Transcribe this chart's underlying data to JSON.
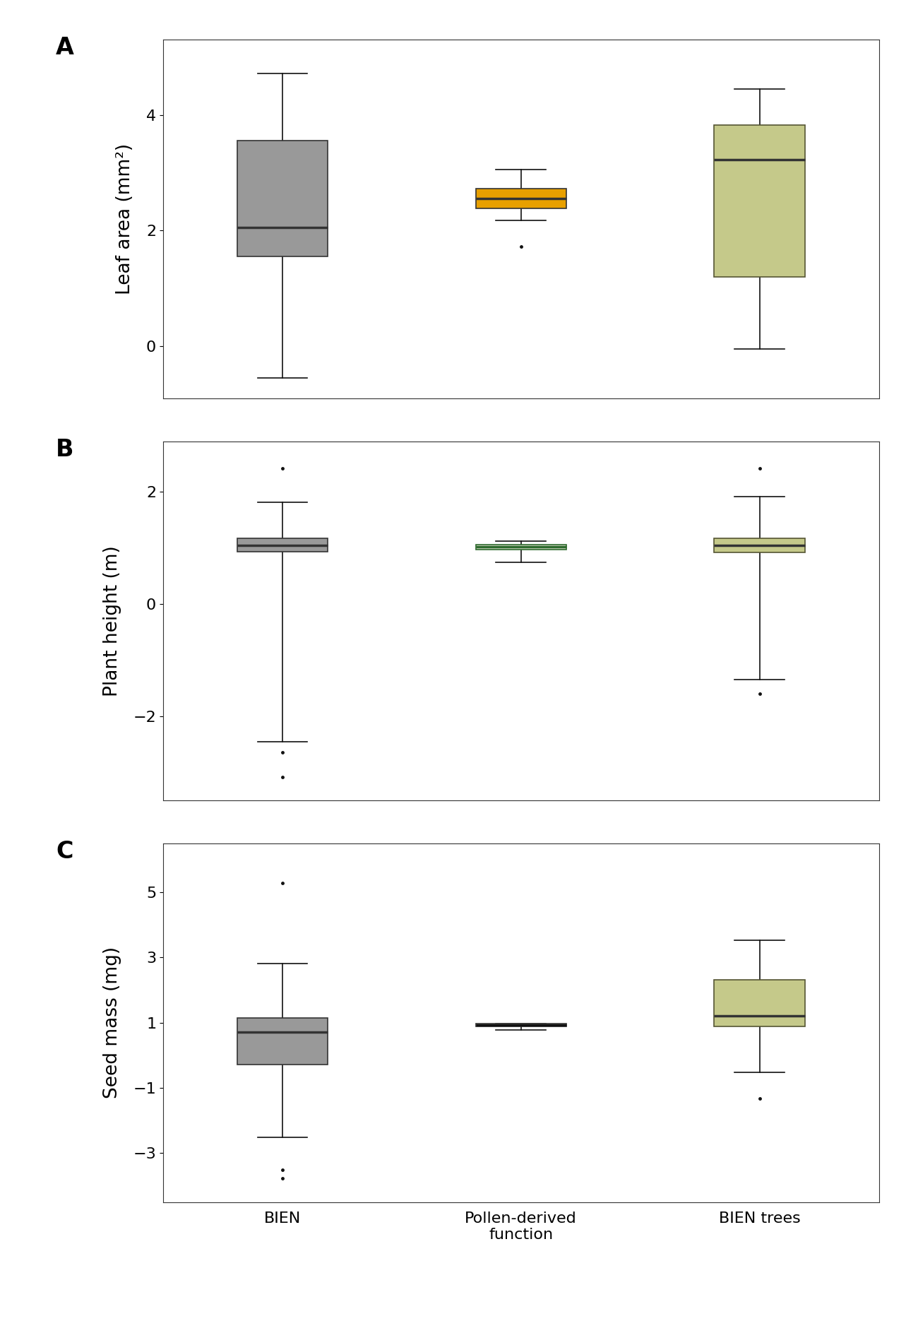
{
  "panels": [
    {
      "label": "A",
      "ylabel": "Leaf area (mm²)",
      "ylim": [
        -0.9,
        5.3
      ],
      "yticks": [
        0,
        2,
        4
      ],
      "boxes": [
        {
          "name": "BIEN",
          "color": "#999999",
          "edge_color": "#333333",
          "median_color": "#333333",
          "q1": 1.55,
          "median": 2.05,
          "q3": 3.55,
          "whisker_low": -0.55,
          "whisker_high": 4.72,
          "outliers": [],
          "x": 1
        },
        {
          "name": "Pollen-derived\nfunction",
          "color": "#E8A000",
          "edge_color": "#333333",
          "median_color": "#333333",
          "q1": 2.38,
          "median": 2.55,
          "q3": 2.72,
          "whisker_low": 2.18,
          "whisker_high": 3.05,
          "outliers": [
            1.73
          ],
          "x": 2
        },
        {
          "name": "BIEN trees",
          "color": "#C5C98A",
          "edge_color": "#555533",
          "median_color": "#333333",
          "q1": 1.2,
          "median": 3.22,
          "q3": 3.82,
          "whisker_low": -0.05,
          "whisker_high": 4.45,
          "outliers": [],
          "x": 3
        }
      ]
    },
    {
      "label": "B",
      "ylabel": "Plant height (m)",
      "ylim": [
        -3.5,
        2.9
      ],
      "yticks": [
        -2,
        0,
        2
      ],
      "boxes": [
        {
          "name": "BIEN",
          "color": "#999999",
          "edge_color": "#333333",
          "median_color": "#333333",
          "q1": 0.93,
          "median": 1.05,
          "q3": 1.17,
          "whisker_low": -2.45,
          "whisker_high": 1.82,
          "outliers": [
            2.42,
            -2.65,
            -3.08
          ],
          "x": 1
        },
        {
          "name": "Pollen-derived\nfunction",
          "color": "#DDDDCC",
          "edge_color": "#2D6A2D",
          "median_color": "#2D6A2D",
          "q1": 0.97,
          "median": 1.02,
          "q3": 1.06,
          "whisker_low": 0.75,
          "whisker_high": 1.12,
          "outliers": [],
          "x": 2
        },
        {
          "name": "BIEN trees",
          "color": "#C5C98A",
          "edge_color": "#555533",
          "median_color": "#333333",
          "q1": 0.92,
          "median": 1.05,
          "q3": 1.17,
          "whisker_low": -1.35,
          "whisker_high": 1.92,
          "outliers": [
            2.42,
            -1.6
          ],
          "x": 3
        }
      ]
    },
    {
      "label": "C",
      "ylabel": "Seed mass (mg)",
      "ylim": [
        -4.5,
        6.5
      ],
      "yticks": [
        -3,
        -1,
        1,
        3,
        5
      ],
      "boxes": [
        {
          "name": "BIEN",
          "color": "#999999",
          "edge_color": "#333333",
          "median_color": "#333333",
          "q1": -0.28,
          "median": 0.72,
          "q3": 1.15,
          "whisker_low": -2.52,
          "whisker_high": 2.82,
          "outliers": [
            5.28,
            -3.52,
            -3.78
          ],
          "x": 1
        },
        {
          "name": "Pollen-derived\nfunction",
          "color": "#DDDDCC",
          "edge_color": "#333333",
          "median_color": "#111111",
          "q1": 0.88,
          "median": 0.93,
          "q3": 0.97,
          "whisker_low": 0.78,
          "whisker_high": 0.98,
          "outliers": [],
          "x": 2
        },
        {
          "name": "BIEN trees",
          "color": "#C5C98A",
          "edge_color": "#555533",
          "median_color": "#333333",
          "q1": 0.88,
          "median": 1.22,
          "q3": 2.32,
          "whisker_low": -0.52,
          "whisker_high": 3.52,
          "outliers": [
            -1.32
          ],
          "x": 3
        }
      ]
    }
  ],
  "xtick_labels": [
    "BIEN",
    "Pollen-derived\nfunction",
    "BIEN trees"
  ],
  "box_width": 0.38,
  "linewidth": 1.2,
  "whisker_linewidth": 1.2,
  "cap_linewidth": 1.2,
  "median_linewidth": 2.5,
  "outlier_marker": ".",
  "outlier_size": 5,
  "background_color": "#ffffff",
  "panel_bg_color": "#ffffff",
  "font_size": 19,
  "label_font_size": 24,
  "tick_font_size": 16
}
